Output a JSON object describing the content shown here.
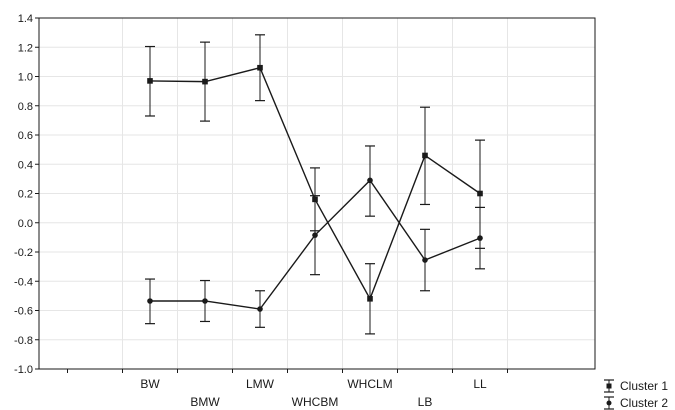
{
  "chart_data": {
    "type": "line",
    "title": "",
    "xlabel": "",
    "ylabel": "",
    "ylim": [
      -1.0,
      1.4
    ],
    "yticks": [
      -1.0,
      -0.8,
      -0.6,
      -0.4,
      -0.2,
      0.0,
      0.2,
      0.4,
      0.6,
      0.8,
      1.0,
      1.2,
      1.4
    ],
    "ytick_labels": [
      "-1.0",
      "-0.8",
      "-0.6",
      "-0.4",
      "-0.2",
      "0.0",
      "0.2",
      "0.4",
      "0.6",
      "0.8",
      "1.0",
      "1.2",
      "1.4"
    ],
    "grid": true,
    "legend_position": "bottom-right",
    "categories": [
      "BW",
      "BMW",
      "LMW",
      "WHCBM",
      "WHCLM",
      "LB",
      "LL"
    ],
    "series": [
      {
        "name": "Cluster 1",
        "marker": "square",
        "values": [
          0.97,
          0.965,
          1.06,
          0.16,
          -0.52,
          0.46,
          0.2
        ],
        "upper": [
          1.205,
          1.235,
          1.285,
          0.375,
          -0.28,
          0.79,
          0.565
        ],
        "lower": [
          0.73,
          0.695,
          0.835,
          -0.055,
          -0.76,
          0.125,
          -0.175
        ]
      },
      {
        "name": "Cluster 2",
        "marker": "circle",
        "values": [
          -0.535,
          -0.535,
          -0.59,
          -0.085,
          0.29,
          -0.255,
          -0.105
        ],
        "upper": [
          -0.385,
          -0.395,
          -0.465,
          0.185,
          0.525,
          -0.045,
          0.105
        ],
        "lower": [
          -0.69,
          -0.675,
          -0.715,
          -0.355,
          0.045,
          -0.465,
          -0.315
        ]
      }
    ]
  },
  "colors": {
    "line": "#1a1a1a",
    "grid": "#e6e6e6",
    "frame": "#1a1a1a",
    "background": "#ffffff"
  }
}
